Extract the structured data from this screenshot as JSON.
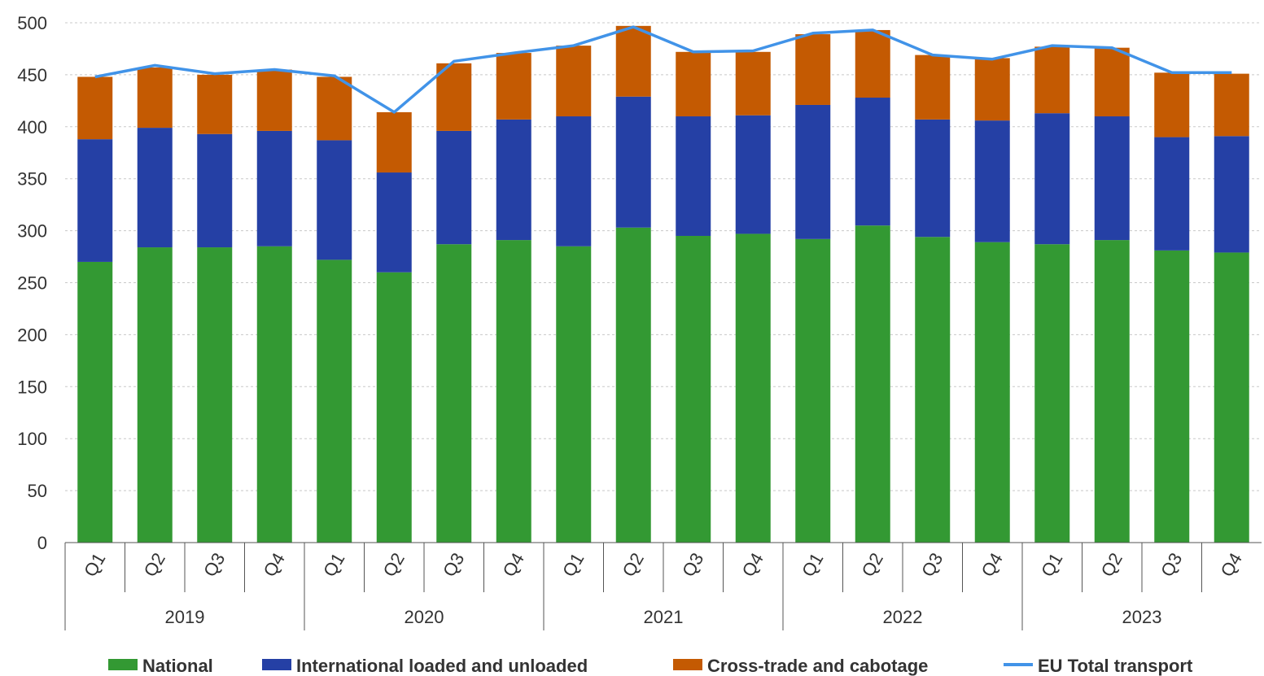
{
  "chart_data": {
    "type": "bar",
    "stacked": true,
    "title": "",
    "xlabel": "",
    "ylabel": "",
    "ylim": [
      0,
      500
    ],
    "yticks": [
      0,
      50,
      100,
      150,
      200,
      250,
      300,
      350,
      400,
      450,
      500
    ],
    "grid": true,
    "legend_position": "bottom",
    "years": [
      "2019",
      "2020",
      "2021",
      "2022",
      "2023"
    ],
    "categories": [
      "Q1",
      "Q2",
      "Q3",
      "Q4",
      "Q1",
      "Q2",
      "Q3",
      "Q4",
      "Q1",
      "Q2",
      "Q3",
      "Q4",
      "Q1",
      "Q2",
      "Q3",
      "Q4",
      "Q1",
      "Q2",
      "Q3",
      "Q4"
    ],
    "series": [
      {
        "name": "National",
        "type": "bar",
        "color": "#339933",
        "values": [
          270,
          284,
          284,
          285,
          272,
          260,
          287,
          291,
          285,
          303,
          295,
          297,
          292,
          305,
          294,
          289,
          287,
          291,
          281,
          279
        ]
      },
      {
        "name": "International loaded and unloaded",
        "type": "bar",
        "color": "#2540A5",
        "values": [
          118,
          115,
          109,
          111,
          115,
          96,
          109,
          116,
          125,
          126,
          115,
          114,
          129,
          123,
          113,
          117,
          126,
          119,
          109,
          112
        ]
      },
      {
        "name": "Cross-trade and cabotage",
        "type": "bar",
        "color": "#C45A02",
        "values": [
          60,
          58,
          57,
          59,
          61,
          58,
          65,
          64,
          68,
          68,
          62,
          61,
          68,
          65,
          62,
          60,
          64,
          66,
          62,
          60
        ]
      },
      {
        "name": "EU Total transport",
        "type": "line",
        "color": "#4193E8",
        "values": [
          448,
          459,
          451,
          455,
          449,
          414,
          463,
          471,
          478,
          496,
          472,
          473,
          490,
          493,
          469,
          465,
          478,
          476,
          452,
          452
        ]
      }
    ]
  }
}
